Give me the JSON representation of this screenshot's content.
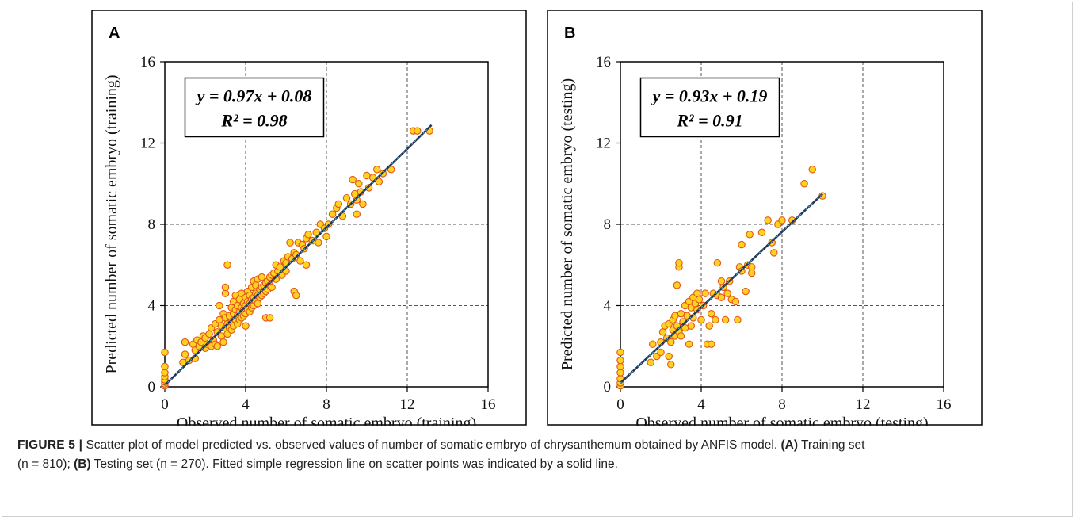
{
  "chart_data": [
    {
      "type": "scatter",
      "panel_label": "A",
      "xlabel": "Observed number of somatic embryo (training)",
      "ylabel": "Predicted number of somatic embryo (training)",
      "xlim": [
        0,
        16
      ],
      "ylim": [
        0,
        16
      ],
      "xticks": [
        "0",
        "4",
        "8",
        "12",
        "16"
      ],
      "yticks": [
        "0",
        "4",
        "8",
        "12",
        "16"
      ],
      "grid": true,
      "annotation": {
        "equation": "y = 0.97x + 0.08",
        "r2": "R² = 0.98"
      },
      "fit_line": {
        "slope": 0.97,
        "intercept": 0.08,
        "x_range": [
          0,
          13.2
        ]
      },
      "points": [
        [
          0,
          0.05
        ],
        [
          0,
          0.15
        ],
        [
          0,
          0.25
        ],
        [
          0,
          0.35
        ],
        [
          0,
          0.5
        ],
        [
          0,
          0.7
        ],
        [
          0,
          1.0
        ],
        [
          0,
          1.7
        ],
        [
          0.9,
          1.2
        ],
        [
          1.0,
          1.6
        ],
        [
          1.0,
          2.2
        ],
        [
          1.2,
          1.3
        ],
        [
          1.4,
          2.1
        ],
        [
          1.5,
          1.4
        ],
        [
          1.5,
          1.8
        ],
        [
          1.6,
          2.3
        ],
        [
          1.7,
          2.0
        ],
        [
          1.8,
          2.2
        ],
        [
          1.9,
          2.5
        ],
        [
          2.0,
          1.9
        ],
        [
          2.0,
          2.4
        ],
        [
          2.1,
          2.1
        ],
        [
          2.2,
          2.6
        ],
        [
          2.3,
          2.0
        ],
        [
          2.3,
          2.9
        ],
        [
          2.4,
          2.3
        ],
        [
          2.5,
          2.1
        ],
        [
          2.5,
          3.1
        ],
        [
          2.6,
          2.7
        ],
        [
          2.6,
          2.0
        ],
        [
          2.7,
          3.3
        ],
        [
          2.7,
          4.0
        ],
        [
          2.8,
          2.5
        ],
        [
          2.8,
          3.0
        ],
        [
          2.9,
          2.2
        ],
        [
          2.9,
          3.6
        ],
        [
          3.0,
          2.9
        ],
        [
          3.0,
          3.4
        ],
        [
          3.0,
          4.6
        ],
        [
          3.0,
          4.9
        ],
        [
          3.1,
          3.1
        ],
        [
          3.1,
          2.6
        ],
        [
          3.1,
          6.0
        ],
        [
          3.2,
          3.5
        ],
        [
          3.2,
          2.9
        ],
        [
          3.3,
          3.2
        ],
        [
          3.3,
          3.9
        ],
        [
          3.3,
          2.8
        ],
        [
          3.4,
          3.6
        ],
        [
          3.4,
          4.2
        ],
        [
          3.4,
          3.0
        ],
        [
          3.5,
          3.3
        ],
        [
          3.5,
          3.8
        ],
        [
          3.5,
          4.5
        ],
        [
          3.6,
          3.5
        ],
        [
          3.6,
          3.1
        ],
        [
          3.6,
          4.0
        ],
        [
          3.7,
          3.7
        ],
        [
          3.7,
          4.3
        ],
        [
          3.7,
          3.3
        ],
        [
          3.8,
          3.9
        ],
        [
          3.8,
          3.4
        ],
        [
          3.8,
          4.6
        ],
        [
          3.9,
          3.8
        ],
        [
          3.9,
          4.1
        ],
        [
          3.9,
          3.5
        ],
        [
          4.0,
          4.0
        ],
        [
          4.0,
          3.6
        ],
        [
          4.0,
          4.4
        ],
        [
          4.0,
          3.0
        ],
        [
          4.1,
          4.2
        ],
        [
          4.1,
          3.8
        ],
        [
          4.1,
          4.7
        ],
        [
          4.2,
          4.1
        ],
        [
          4.2,
          4.5
        ],
        [
          4.2,
          3.7
        ],
        [
          4.3,
          4.3
        ],
        [
          4.3,
          3.9
        ],
        [
          4.3,
          4.9
        ],
        [
          4.4,
          4.4
        ],
        [
          4.4,
          4.0
        ],
        [
          4.4,
          5.2
        ],
        [
          4.5,
          4.6
        ],
        [
          4.5,
          4.2
        ],
        [
          4.5,
          5.0
        ],
        [
          4.6,
          4.5
        ],
        [
          4.6,
          4.1
        ],
        [
          4.6,
          5.3
        ],
        [
          4.7,
          4.8
        ],
        [
          4.7,
          4.4
        ],
        [
          4.8,
          4.9
        ],
        [
          4.8,
          4.5
        ],
        [
          4.8,
          5.4
        ],
        [
          4.9,
          5.0
        ],
        [
          4.9,
          4.6
        ],
        [
          5.0,
          5.1
        ],
        [
          5.0,
          4.7
        ],
        [
          5.0,
          3.4
        ],
        [
          5.1,
          5.2
        ],
        [
          5.1,
          4.8
        ],
        [
          5.2,
          5.4
        ],
        [
          5.2,
          5.0
        ],
        [
          5.2,
          3.4
        ],
        [
          5.3,
          5.5
        ],
        [
          5.3,
          4.9
        ],
        [
          5.4,
          5.6
        ],
        [
          5.5,
          5.3
        ],
        [
          5.5,
          6.0
        ],
        [
          5.6,
          5.7
        ],
        [
          5.7,
          5.9
        ],
        [
          5.8,
          5.5
        ],
        [
          5.9,
          6.2
        ],
        [
          6.0,
          6.1
        ],
        [
          6.0,
          5.7
        ],
        [
          6.1,
          6.4
        ],
        [
          6.2,
          7.1
        ],
        [
          6.3,
          6.3
        ],
        [
          6.4,
          6.6
        ],
        [
          6.4,
          4.7
        ],
        [
          6.5,
          6.5
        ],
        [
          6.5,
          4.5
        ],
        [
          6.6,
          7.1
        ],
        [
          6.7,
          6.2
        ],
        [
          6.8,
          7.0
        ],
        [
          6.9,
          6.8
        ],
        [
          7.0,
          7.3
        ],
        [
          7.0,
          6.0
        ],
        [
          7.1,
          7.5
        ],
        [
          7.3,
          7.2
        ],
        [
          7.5,
          7.6
        ],
        [
          7.6,
          7.1
        ],
        [
          7.7,
          8.0
        ],
        [
          7.9,
          7.8
        ],
        [
          8.0,
          7.4
        ],
        [
          8.1,
          8.0
        ],
        [
          8.3,
          8.5
        ],
        [
          8.5,
          8.8
        ],
        [
          8.6,
          9.0
        ],
        [
          8.8,
          8.4
        ],
        [
          9.0,
          9.3
        ],
        [
          9.2,
          9.0
        ],
        [
          9.3,
          10.2
        ],
        [
          9.4,
          9.5
        ],
        [
          9.5,
          9.2
        ],
        [
          9.5,
          8.5
        ],
        [
          9.6,
          10.0
        ],
        [
          9.7,
          9.6
        ],
        [
          9.8,
          9.0
        ],
        [
          10.0,
          10.4
        ],
        [
          10.1,
          9.8
        ],
        [
          10.3,
          10.3
        ],
        [
          10.5,
          10.7
        ],
        [
          10.6,
          10.1
        ],
        [
          10.8,
          10.5
        ],
        [
          11.2,
          10.7
        ],
        [
          12.3,
          12.6
        ],
        [
          12.5,
          12.6
        ],
        [
          13.1,
          12.6
        ]
      ]
    },
    {
      "type": "scatter",
      "panel_label": "B",
      "xlabel": "Observed number of somatic embryo (testing)",
      "ylabel": "Predicted number of somatic embryo (testing)",
      "xlim": [
        0,
        16
      ],
      "ylim": [
        0,
        16
      ],
      "xticks": [
        "0",
        "4",
        "8",
        "12",
        "16"
      ],
      "yticks": [
        "0",
        "4",
        "8",
        "12",
        "16"
      ],
      "grid": true,
      "annotation": {
        "equation": "y = 0.93x + 0.19",
        "r2": "R² = 0.91"
      },
      "fit_line": {
        "slope": 0.93,
        "intercept": 0.19,
        "x_range": [
          0,
          10.0
        ]
      },
      "points": [
        [
          0,
          0.05
        ],
        [
          0,
          0.2
        ],
        [
          0,
          0.4
        ],
        [
          0,
          0.7
        ],
        [
          0,
          1.0
        ],
        [
          0,
          1.3
        ],
        [
          0,
          1.7
        ],
        [
          1.5,
          1.2
        ],
        [
          1.6,
          2.1
        ],
        [
          1.8,
          1.5
        ],
        [
          2.0,
          1.7
        ],
        [
          2.0,
          2.2
        ],
        [
          2.1,
          2.7
        ],
        [
          2.2,
          3.0
        ],
        [
          2.3,
          2.4
        ],
        [
          2.4,
          1.5
        ],
        [
          2.4,
          3.1
        ],
        [
          2.5,
          2.2
        ],
        [
          2.5,
          1.1
        ],
        [
          2.6,
          2.8
        ],
        [
          2.6,
          3.3
        ],
        [
          2.7,
          2.5
        ],
        [
          2.7,
          3.5
        ],
        [
          2.8,
          3.0
        ],
        [
          2.8,
          5.0
        ],
        [
          2.9,
          5.9
        ],
        [
          2.9,
          6.1
        ],
        [
          2.9,
          2.7
        ],
        [
          3.0,
          3.6
        ],
        [
          3.0,
          2.5
        ],
        [
          3.1,
          3.2
        ],
        [
          3.2,
          4.0
        ],
        [
          3.2,
          2.9
        ],
        [
          3.3,
          3.5
        ],
        [
          3.4,
          4.2
        ],
        [
          3.4,
          2.1
        ],
        [
          3.5,
          3.9
        ],
        [
          3.5,
          3.0
        ],
        [
          3.6,
          4.4
        ],
        [
          3.6,
          3.4
        ],
        [
          3.7,
          4.1
        ],
        [
          3.8,
          3.8
        ],
        [
          3.8,
          4.6
        ],
        [
          3.9,
          4.3
        ],
        [
          4.0,
          3.3
        ],
        [
          4.1,
          4.0
        ],
        [
          4.2,
          4.6
        ],
        [
          4.3,
          2.1
        ],
        [
          4.4,
          3.0
        ],
        [
          4.5,
          2.1
        ],
        [
          4.5,
          3.6
        ],
        [
          4.6,
          4.6
        ],
        [
          4.7,
          3.3
        ],
        [
          4.8,
          4.5
        ],
        [
          4.8,
          6.1
        ],
        [
          5.0,
          4.4
        ],
        [
          5.0,
          5.2
        ],
        [
          5.1,
          4.9
        ],
        [
          5.2,
          3.3
        ],
        [
          5.3,
          4.6
        ],
        [
          5.4,
          5.2
        ],
        [
          5.5,
          4.3
        ],
        [
          5.7,
          4.2
        ],
        [
          5.8,
          3.3
        ],
        [
          5.9,
          5.9
        ],
        [
          6.0,
          7.0
        ],
        [
          6.0,
          5.7
        ],
        [
          6.2,
          4.7
        ],
        [
          6.3,
          6.0
        ],
        [
          6.4,
          7.5
        ],
        [
          6.5,
          5.9
        ],
        [
          6.5,
          5.6
        ],
        [
          7.0,
          7.6
        ],
        [
          7.3,
          8.2
        ],
        [
          7.5,
          7.1
        ],
        [
          7.6,
          6.6
        ],
        [
          7.8,
          8.0
        ],
        [
          8.0,
          8.2
        ],
        [
          8.5,
          8.2
        ],
        [
          9.1,
          10.0
        ],
        [
          9.5,
          10.7
        ],
        [
          10.0,
          9.4
        ]
      ]
    }
  ],
  "caption": {
    "figure_label": "FIGURE 5 |",
    "text_1": " Scatter plot of model predicted vs. observed values of number of somatic embryo of chrysanthemum obtained by ANFIS model. ",
    "label_a": "(A)",
    "text_2": " Training set",
    "text_3": "(n = 810); ",
    "label_b": "(B)",
    "text_4": " Testing set (n = 270). Fitted simple regression line on scatter points was indicated by a solid line."
  },
  "colors": {
    "point_fill": "#FFD21F",
    "point_stroke": "#E0561A",
    "fit_line_dark": "#1F3556",
    "fit_line_light": "#56B4E9",
    "grid": "#555555",
    "axis": "#000000"
  }
}
